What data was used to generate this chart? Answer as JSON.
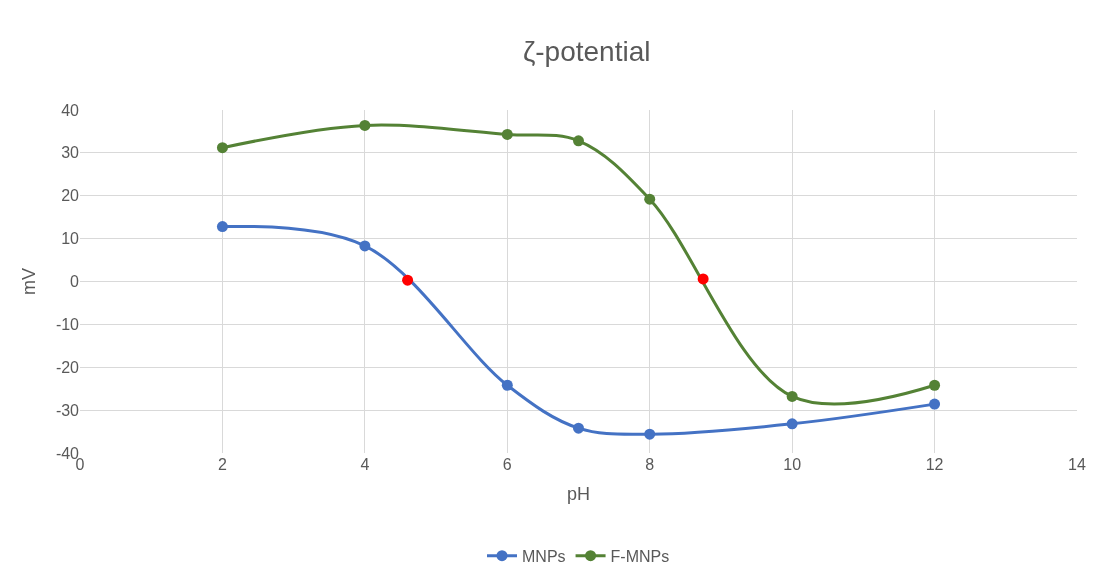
{
  "chart_data": {
    "type": "line",
    "title": "ζ-potential",
    "xlabel": "pH",
    "ylabel": "mV",
    "xlim": [
      0,
      14
    ],
    "xticks": [
      0,
      2,
      4,
      6,
      8,
      10,
      12,
      14
    ],
    "ylim": [
      -40,
      40
    ],
    "yticks": [
      -40,
      -30,
      -20,
      -10,
      0,
      10,
      20,
      30,
      40
    ],
    "grid": true,
    "legend": "bottom",
    "marker": "circle",
    "line_style": "solid",
    "series": [
      {
        "name": "MNPs",
        "color": "#4472c4",
        "x": [
          2,
          4,
          6,
          7,
          8,
          10,
          12
        ],
        "values": [
          12.8,
          8.3,
          -24.2,
          -34.2,
          -35.6,
          -33.2,
          -28.6
        ]
      },
      {
        "name": "F-MNPs",
        "color": "#548235",
        "x": [
          2,
          4,
          6,
          7,
          8,
          10,
          12
        ],
        "values": [
          31.2,
          36.4,
          34.3,
          32.8,
          19.2,
          -26.8,
          -24.2
        ]
      },
      {
        "type": "scatter",
        "color": "#ff0000",
        "x": [
          4.6,
          8.75
        ],
        "values": [
          0.3,
          0.6
        ]
      }
    ]
  }
}
